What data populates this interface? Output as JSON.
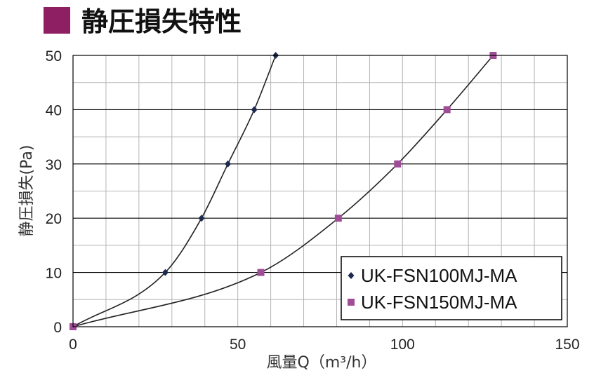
{
  "title": "静圧損失特性",
  "colors": {
    "title_square": "#8e1f63",
    "series1": "#1c2a4d",
    "series2": "#a04d98",
    "major_grid": "#000000",
    "minor_grid": "#b5b5b5",
    "curve": "#222222"
  },
  "chart_data": {
    "type": "line",
    "xlabel": "風量Q（m³/h）",
    "ylabel": "静圧損失(Pa)",
    "xlim": [
      0,
      150
    ],
    "ylim": [
      0,
      50
    ],
    "xticks": [
      0,
      50,
      100,
      150
    ],
    "yticks": [
      0,
      10,
      20,
      30,
      40,
      50
    ],
    "x_minor_step": 10,
    "y_minor_step": 5,
    "grid": true,
    "legend_position": "bottom-right",
    "series": [
      {
        "name": "UK-FSN100MJ-MA",
        "marker": "diamond",
        "points": [
          [
            0,
            0
          ],
          [
            28,
            10
          ],
          [
            39,
            20
          ],
          [
            47,
            30
          ],
          [
            55,
            40
          ],
          [
            61.5,
            50
          ]
        ]
      },
      {
        "name": "UK-FSN150MJ-MA",
        "marker": "square",
        "points": [
          [
            0,
            0
          ],
          [
            57,
            10
          ],
          [
            80.5,
            20
          ],
          [
            98.5,
            30
          ],
          [
            113.5,
            40
          ],
          [
            127.5,
            50
          ]
        ]
      }
    ]
  }
}
